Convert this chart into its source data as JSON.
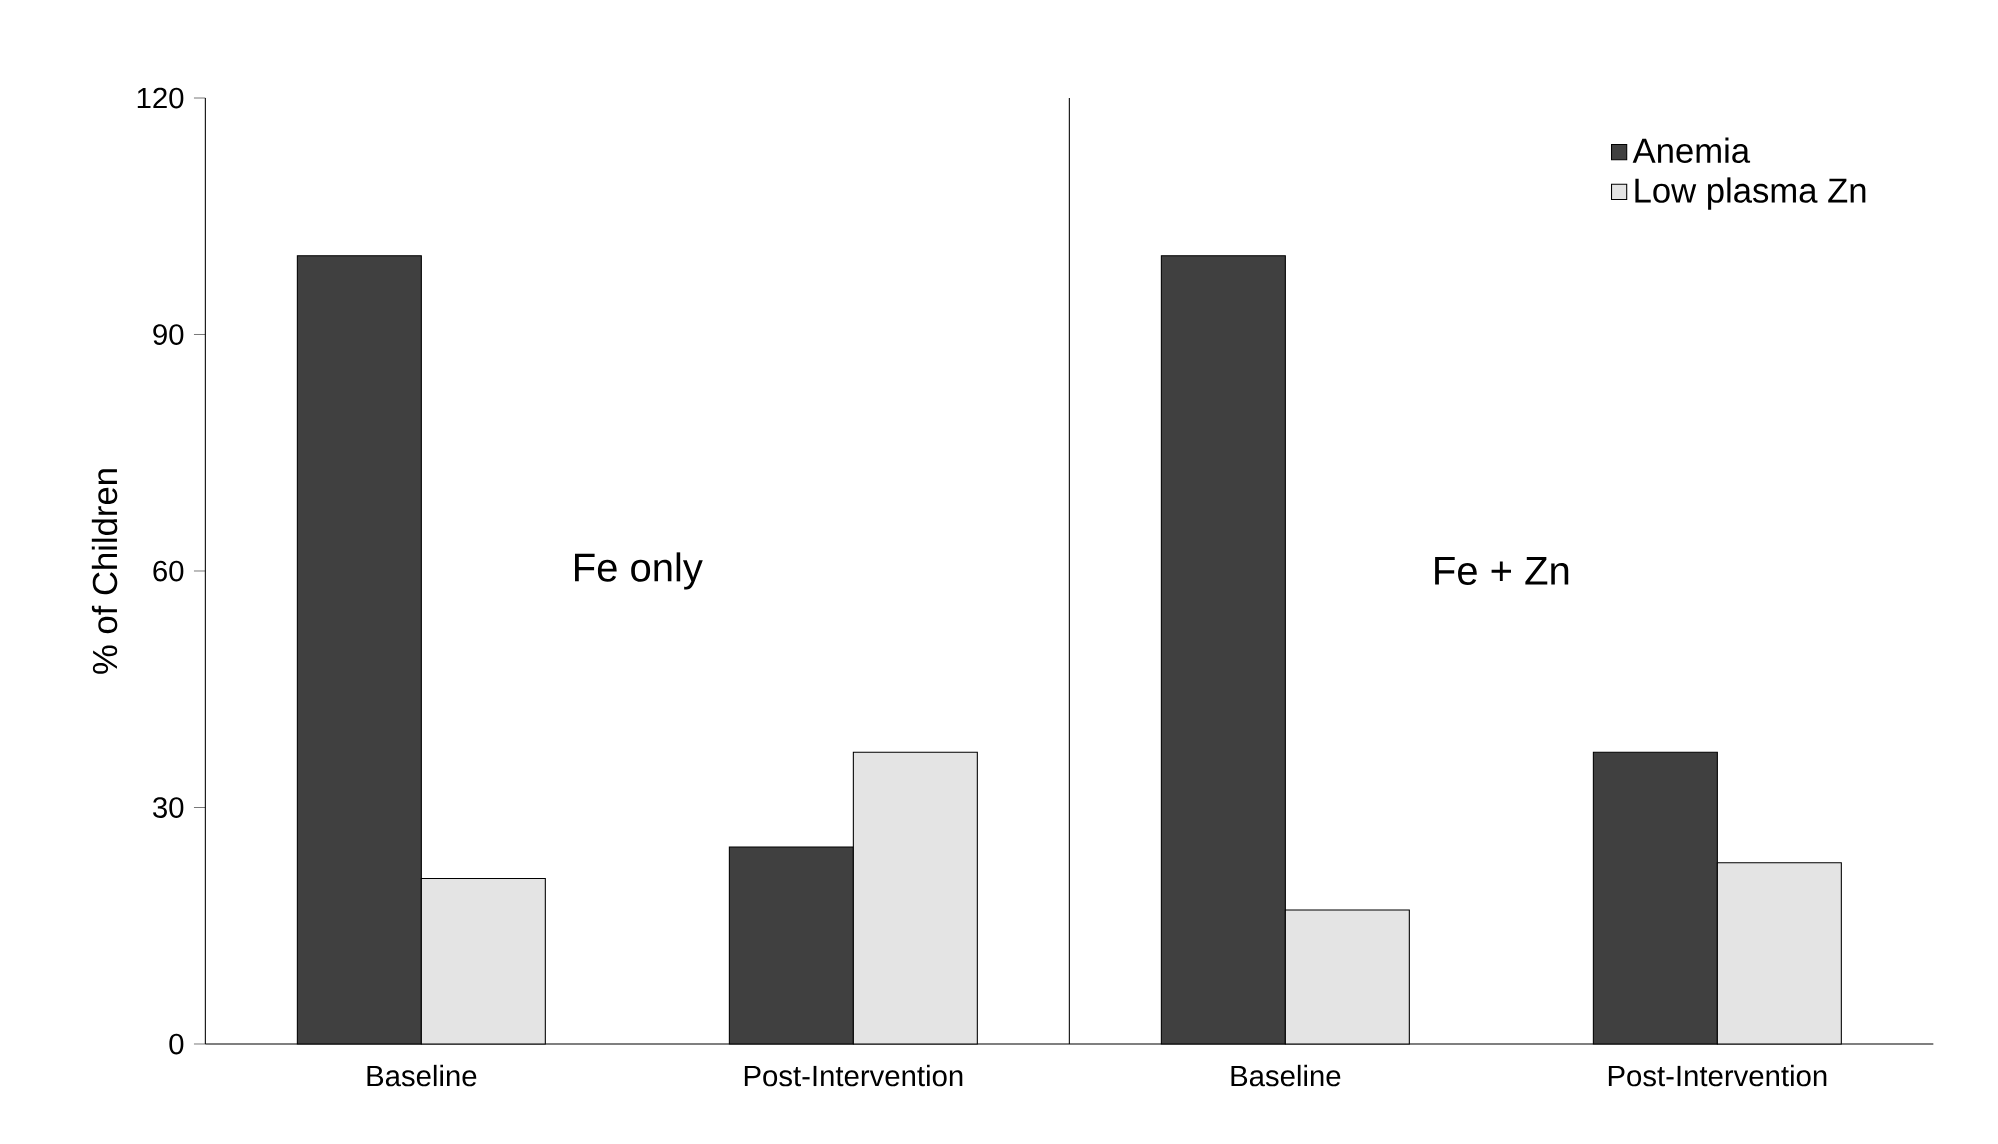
{
  "chart_data": {
    "type": "bar",
    "ylabel": "% of Children",
    "categories": [
      "Baseline",
      "Post-Intervention",
      "Baseline",
      "Post-Intervention"
    ],
    "series": [
      {
        "name": "Anemia",
        "color": "#404040",
        "values": [
          100,
          25,
          100,
          37
        ]
      },
      {
        "name": "Low plasma Zn",
        "color": "#e4e4e4",
        "values": [
          21,
          37,
          17,
          23
        ]
      }
    ],
    "ylim": [
      0,
      120
    ],
    "yticks": [
      0,
      30,
      60,
      90,
      120
    ],
    "annotations": [
      "Fe only",
      "Fe + Zn"
    ],
    "legend": "top right",
    "grid": false
  }
}
